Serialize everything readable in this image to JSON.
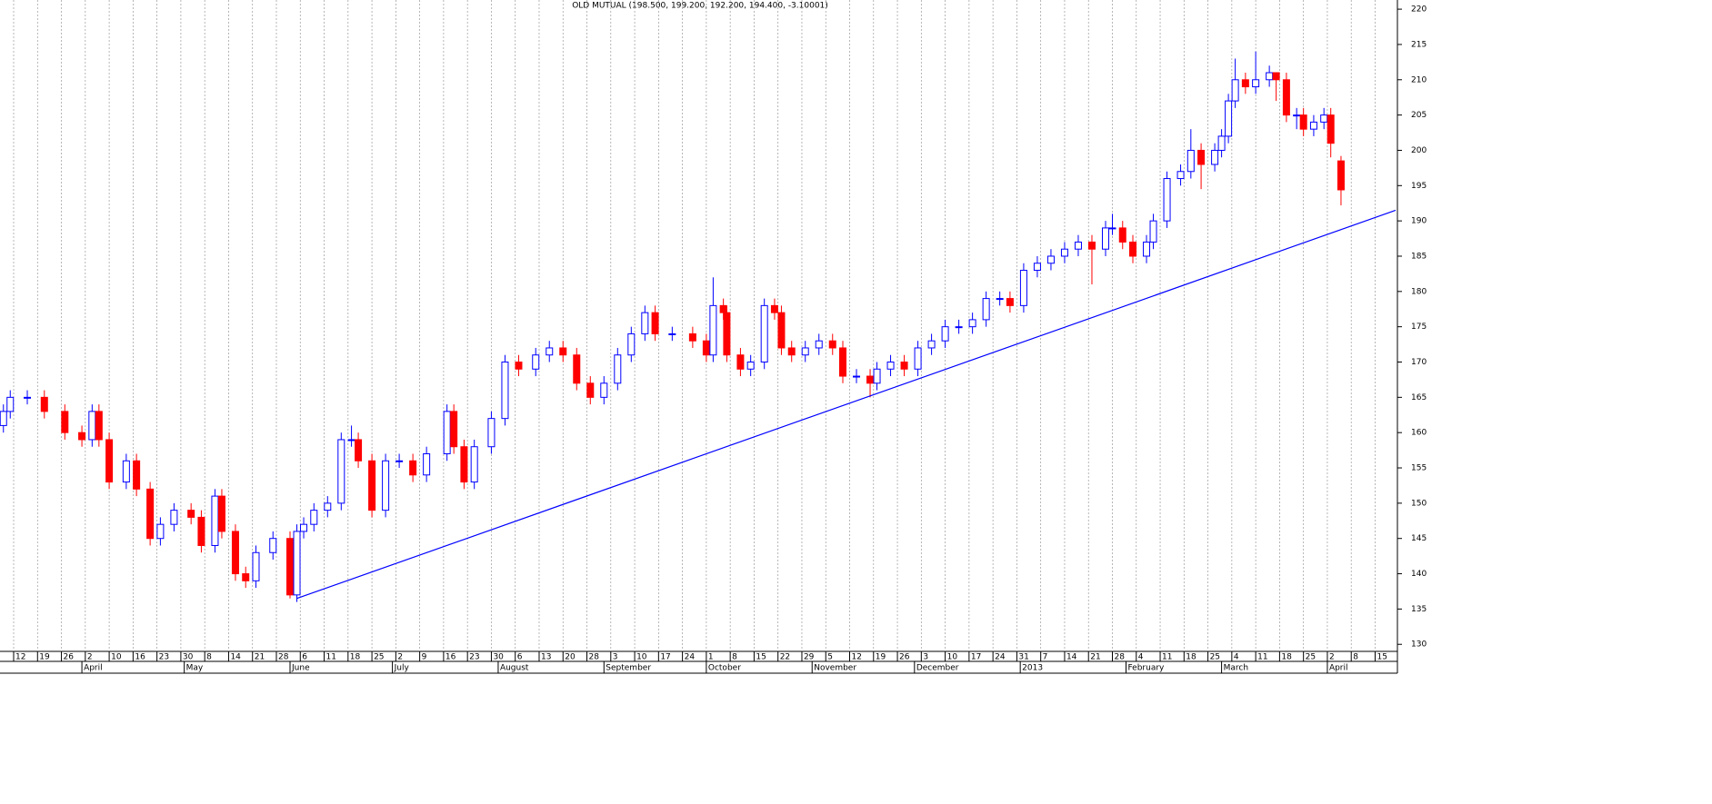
{
  "chart_data": {
    "type": "candlestick",
    "title": "OLD MUTUAL (198.500, 199.200, 192.200, 194.400, -3.10001)",
    "x": [
      1,
      3,
      8,
      13,
      19,
      24,
      27,
      29,
      32,
      37,
      40,
      44,
      47,
      51,
      56,
      59,
      63,
      65,
      69,
      72,
      75,
      80,
      85,
      87,
      89,
      92,
      96,
      100,
      103,
      105,
      109,
      113,
      117,
      121,
      125,
      131,
      133,
      136,
      139,
      144,
      148,
      152,
      157,
      161,
      165,
      169,
      173,
      177,
      181,
      185,
      189,
      192,
      197,
      203,
      207,
      209,
      212,
      213,
      217,
      220,
      224,
      227,
      229,
      232,
      236,
      240,
      244,
      247,
      251,
      255,
      257,
      261,
      265,
      269,
      273,
      277,
      281,
      285,
      289,
      293,
      296,
      300,
      304,
      308,
      312,
      316,
      320,
      324,
      326,
      329,
      332,
      336,
      338,
      342,
      346,
      349,
      352,
      356,
      358,
      360,
      362,
      365,
      368,
      372,
      374,
      377,
      380,
      382,
      385,
      388,
      390,
      393
    ],
    "open": [
      161,
      163,
      165,
      165,
      163,
      160,
      159,
      163,
      159,
      153,
      156,
      152,
      145,
      147,
      149,
      148,
      144,
      151,
      146,
      140,
      139,
      143,
      145,
      137,
      146,
      147,
      149,
      150,
      159,
      159,
      156,
      149,
      156,
      156,
      154,
      157,
      163,
      158,
      153,
      158,
      162,
      170,
      169,
      171,
      172,
      171,
      167,
      165,
      167,
      171,
      174,
      177,
      174,
      174,
      173,
      171,
      178,
      177,
      171,
      169,
      170,
      178,
      177,
      172,
      171,
      172,
      173,
      172,
      168,
      168,
      167,
      169,
      170,
      169,
      172,
      173,
      175,
      175,
      176,
      179,
      179,
      178,
      183,
      184,
      185,
      186,
      187,
      186,
      189,
      189,
      187,
      185,
      187,
      190,
      196,
      197,
      200,
      198,
      200,
      202,
      207,
      210,
      209,
      210,
      211,
      210,
      205,
      205,
      203,
      204,
      205,
      198.5
    ],
    "high": [
      164,
      166,
      166,
      166,
      164,
      161,
      164,
      164,
      160,
      157,
      157,
      153,
      148,
      150,
      150,
      149,
      152,
      152,
      147,
      141,
      144,
      146,
      146,
      147,
      148,
      150,
      151,
      160,
      161,
      160,
      157,
      157,
      157,
      157,
      158,
      164,
      164,
      159,
      159,
      163,
      171,
      171,
      172,
      173,
      173,
      172,
      168,
      168,
      172,
      175,
      178,
      178,
      175,
      175,
      174,
      182,
      179,
      178,
      172,
      171,
      179,
      179,
      178,
      173,
      173,
      174,
      174,
      173,
      169,
      169,
      170,
      171,
      171,
      173,
      174,
      176,
      176,
      177,
      180,
      180,
      180,
      184,
      185,
      186,
      187,
      188,
      188,
      190,
      191,
      190,
      188,
      188,
      191,
      197,
      198,
      203,
      201,
      201,
      203,
      208,
      213,
      211,
      214,
      212,
      211,
      211,
      206,
      206,
      205,
      206,
      206,
      199.2
    ],
    "low": [
      160,
      162,
      164,
      162,
      159,
      158,
      158,
      158,
      152,
      152,
      151,
      144,
      144,
      146,
      147,
      143,
      143,
      145,
      139,
      138,
      138,
      142,
      136.5,
      136,
      145,
      146,
      148,
      149,
      158,
      155,
      148,
      148,
      155,
      153,
      153,
      156,
      157,
      152,
      152,
      157,
      161,
      168,
      168,
      170,
      170,
      166,
      164,
      164,
      166,
      170,
      173,
      173,
      173,
      172,
      170,
      170,
      176,
      170,
      168,
      168,
      169,
      176,
      171,
      170,
      170,
      171,
      171,
      167,
      167,
      165,
      166,
      168,
      168,
      168,
      171,
      172,
      174,
      174,
      175,
      178,
      177,
      177,
      182,
      183,
      184,
      185,
      181,
      185,
      188,
      186,
      184,
      184,
      186,
      189,
      195,
      196,
      194.5,
      197,
      199,
      201,
      206,
      208,
      208,
      209,
      207,
      204,
      203,
      202,
      202,
      203,
      199,
      192.2
    ],
    "close": [
      163,
      165,
      165,
      163,
      160,
      159,
      163,
      159,
      153,
      156,
      152,
      145,
      147,
      149,
      148,
      144,
      151,
      146,
      140,
      139,
      143,
      145,
      137,
      146,
      147,
      149,
      150,
      159,
      159,
      156,
      149,
      156,
      156,
      154,
      157,
      163,
      158,
      153,
      158,
      162,
      170,
      169,
      171,
      172,
      171,
      167,
      165,
      167,
      171,
      174,
      177,
      174,
      174,
      173,
      171,
      178,
      177,
      171,
      169,
      170,
      178,
      177,
      172,
      171,
      172,
      173,
      172,
      168,
      168,
      167,
      169,
      170,
      169,
      172,
      173,
      175,
      175,
      176,
      179,
      179,
      178,
      183,
      184,
      185,
      186,
      187,
      186,
      189,
      189,
      187,
      185,
      187,
      190,
      196,
      197,
      200,
      198,
      200,
      202,
      207,
      210,
      209,
      210,
      211,
      210,
      205,
      205,
      203,
      204,
      205,
      201,
      194.4
    ],
    "up_color": "#0000ff",
    "down_color": "#ff0000",
    "trendline": {
      "x": [
        87,
        409
      ],
      "y": [
        136.5,
        191.5
      ],
      "color": "#0000ff"
    },
    "xlim": [
      0,
      409
    ],
    "ylim": [
      129,
      221.3
    ],
    "yticks": [
      130,
      135,
      140,
      145,
      150,
      155,
      160,
      165,
      170,
      175,
      180,
      185,
      190,
      195,
      200,
      205,
      210,
      215,
      220
    ],
    "xticks": [
      {
        "value": 4,
        "label": "12"
      },
      {
        "value": 11,
        "label": "19"
      },
      {
        "value": 18,
        "label": "26"
      },
      {
        "value": 25,
        "label": "2"
      },
      {
        "value": 32,
        "label": "10"
      },
      {
        "value": 39,
        "label": "16"
      },
      {
        "value": 46,
        "label": "23"
      },
      {
        "value": 53,
        "label": "30"
      },
      {
        "value": 60,
        "label": "8"
      },
      {
        "value": 67,
        "label": "14"
      },
      {
        "value": 74,
        "label": "21"
      },
      {
        "value": 81,
        "label": "28"
      },
      {
        "value": 88,
        "label": "6"
      },
      {
        "value": 95,
        "label": "11"
      },
      {
        "value": 102,
        "label": "18"
      },
      {
        "value": 109,
        "label": "25"
      },
      {
        "value": 116,
        "label": "2"
      },
      {
        "value": 123,
        "label": "9"
      },
      {
        "value": 130,
        "label": "16"
      },
      {
        "value": 137,
        "label": "23"
      },
      {
        "value": 144,
        "label": "30"
      },
      {
        "value": 151,
        "label": "6"
      },
      {
        "value": 158,
        "label": "13"
      },
      {
        "value": 165,
        "label": "20"
      },
      {
        "value": 172,
        "label": "28"
      },
      {
        "value": 179,
        "label": "3"
      },
      {
        "value": 186,
        "label": "10"
      },
      {
        "value": 193,
        "label": "17"
      },
      {
        "value": 200,
        "label": "24"
      },
      {
        "value": 207,
        "label": "1"
      },
      {
        "value": 214,
        "label": "8"
      },
      {
        "value": 221,
        "label": "15"
      },
      {
        "value": 228,
        "label": "22"
      },
      {
        "value": 235,
        "label": "29"
      },
      {
        "value": 242,
        "label": "5"
      },
      {
        "value": 249,
        "label": "12"
      },
      {
        "value": 256,
        "label": "19"
      },
      {
        "value": 263,
        "label": "26"
      },
      {
        "value": 270,
        "label": "3"
      },
      {
        "value": 277,
        "label": "10"
      },
      {
        "value": 284,
        "label": "17"
      },
      {
        "value": 291,
        "label": "24"
      },
      {
        "value": 298,
        "label": "31"
      },
      {
        "value": 305,
        "label": "7"
      },
      {
        "value": 312,
        "label": "14"
      },
      {
        "value": 319,
        "label": "21"
      },
      {
        "value": 326,
        "label": "28"
      },
      {
        "value": 333,
        "label": "4"
      },
      {
        "value": 340,
        "label": "11"
      },
      {
        "value": 347,
        "label": "18"
      },
      {
        "value": 354,
        "label": "25"
      },
      {
        "value": 361,
        "label": "4"
      },
      {
        "value": 368,
        "label": "11"
      },
      {
        "value": 375,
        "label": "18"
      },
      {
        "value": 382,
        "label": "25"
      },
      {
        "value": 389,
        "label": "2"
      },
      {
        "value": 396,
        "label": "8"
      },
      {
        "value": 403,
        "label": "15"
      }
    ],
    "month_labels": [
      {
        "value": 24,
        "label": "April"
      },
      {
        "value": 54,
        "label": "May"
      },
      {
        "value": 85,
        "label": "June"
      },
      {
        "value": 115,
        "label": "July"
      },
      {
        "value": 146,
        "label": "August"
      },
      {
        "value": 177,
        "label": "September"
      },
      {
        "value": 207,
        "label": "October"
      },
      {
        "value": 238,
        "label": "November"
      },
      {
        "value": 268,
        "label": "December"
      },
      {
        "value": 299,
        "label": "2013"
      },
      {
        "value": 330,
        "label": "February"
      },
      {
        "value": 358,
        "label": "March"
      },
      {
        "value": 389,
        "label": "April"
      }
    ],
    "grid": true
  }
}
